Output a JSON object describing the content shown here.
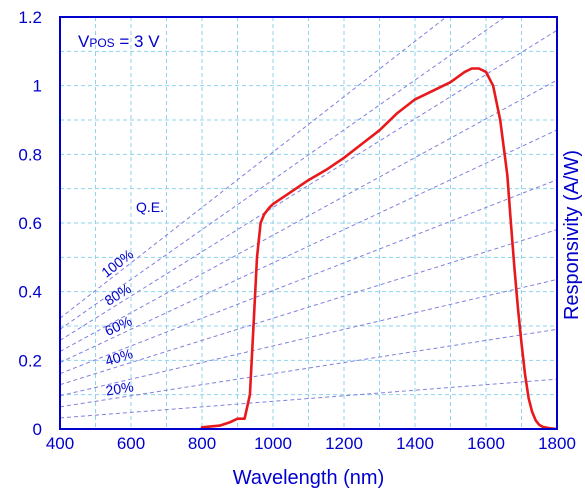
{
  "chart_data": {
    "type": "line",
    "xlabel": "Wavelength (nm)",
    "ylabel": "Responsivity (A/W)",
    "xlim": [
      400,
      1800
    ],
    "ylim": [
      0,
      1.2
    ],
    "x_ticks": [
      "400",
      "600",
      "800",
      "1000",
      "1200",
      "1400",
      "1600",
      "1800"
    ],
    "y_ticks": [
      "0",
      "0.2",
      "0.4",
      "0.6",
      "0.8",
      "1",
      "1.2"
    ],
    "x_tick_values": [
      400,
      600,
      800,
      1000,
      1200,
      1400,
      1600,
      1800
    ],
    "y_tick_values": [
      0,
      0.2,
      0.4,
      0.6,
      0.8,
      1.0,
      1.2
    ],
    "grid": true,
    "colors": {
      "curve": "#e8191c",
      "axis": "#0000cc",
      "grid": "#8fd3ee",
      "qe_lines": "#8080dd"
    },
    "annotations": {
      "condition_main": "V",
      "condition_sub": "POS",
      "condition_rest": " = 3 V",
      "qe_title": "Q.E."
    },
    "qe_lines": [
      {
        "qe": 1.0,
        "label": "100%"
      },
      {
        "qe": 0.9,
        "label": ""
      },
      {
        "qe": 0.8,
        "label": "80%"
      },
      {
        "qe": 0.7,
        "label": ""
      },
      {
        "qe": 0.6,
        "label": "60%"
      },
      {
        "qe": 0.5,
        "label": ""
      },
      {
        "qe": 0.4,
        "label": "40%"
      },
      {
        "qe": 0.3,
        "label": ""
      },
      {
        "qe": 0.2,
        "label": "20%"
      },
      {
        "qe": 0.1,
        "label": ""
      }
    ],
    "series": [
      {
        "x": [
          800,
          850,
          880,
          900,
          920,
          935,
          945,
          955,
          965,
          975,
          990,
          1000,
          1050,
          1100,
          1150,
          1200,
          1250,
          1300,
          1350,
          1400,
          1450,
          1500,
          1540,
          1560,
          1580,
          1600,
          1620,
          1640,
          1660,
          1670,
          1680,
          1690,
          1700,
          1710,
          1720,
          1730,
          1740,
          1750,
          1760,
          1780,
          1800
        ],
        "y": [
          0.005,
          0.01,
          0.02,
          0.03,
          0.03,
          0.1,
          0.3,
          0.5,
          0.6,
          0.625,
          0.645,
          0.655,
          0.69,
          0.725,
          0.755,
          0.79,
          0.83,
          0.87,
          0.92,
          0.96,
          0.985,
          1.01,
          1.04,
          1.05,
          1.05,
          1.04,
          1.0,
          0.9,
          0.74,
          0.6,
          0.47,
          0.35,
          0.25,
          0.16,
          0.09,
          0.05,
          0.025,
          0.012,
          0.006,
          0.002,
          0.0
        ]
      }
    ]
  }
}
